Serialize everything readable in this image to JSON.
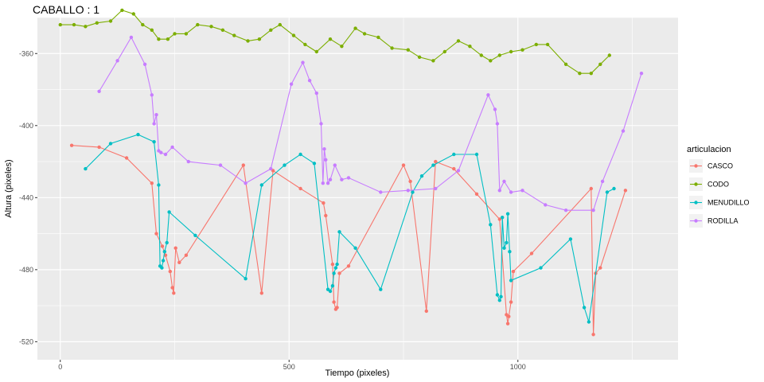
{
  "chart_data": {
    "type": "line",
    "title": "CABALLO :  1",
    "xlabel": "Tiempo (pixeles)",
    "ylabel": "Altura (pixeles)",
    "xlim": [
      -50,
      1350
    ],
    "ylim": [
      -530,
      -340
    ],
    "x_ticks": [
      0,
      500,
      1000
    ],
    "x_tick_labels": [
      "0",
      "500",
      "1000"
    ],
    "y_ticks": [
      -360,
      -400,
      -440,
      -480,
      -520
    ],
    "y_tick_labels": [
      "-360",
      "-400",
      "-440",
      "-480",
      "-520"
    ],
    "grid": true,
    "legend_title": "articulacion",
    "legend_position": "right",
    "series": [
      {
        "name": "CASCO",
        "color": "#F8766D",
        "x": [
          25,
          85,
          145,
          200,
          210,
          223,
          230,
          240,
          245,
          248,
          252,
          260,
          275,
          400,
          440,
          465,
          525,
          575,
          580,
          595,
          598,
          602,
          605,
          610,
          630,
          750,
          765,
          800,
          820,
          860,
          910,
          960,
          975,
          978,
          980,
          985,
          990,
          1030,
          1160,
          1165,
          1170,
          1180,
          1235
        ],
        "y": [
          -411,
          -412,
          -418,
          -432,
          -460,
          -467,
          -472,
          -481,
          -490,
          -493,
          -468,
          -476,
          -472,
          -422,
          -493,
          -425,
          -435,
          -443,
          -450,
          -477,
          -498,
          -502,
          -501,
          -482,
          -478,
          -422,
          -431,
          -503,
          -420,
          -424,
          -438,
          -452,
          -505,
          -510,
          -506,
          -498,
          -481,
          -471,
          -435,
          -516,
          -482,
          -479,
          -436
        ]
      },
      {
        "name": "CODO",
        "color": "#7CAE00",
        "x": [
          0,
          30,
          55,
          80,
          110,
          135,
          160,
          180,
          200,
          215,
          235,
          250,
          275,
          300,
          330,
          355,
          380,
          410,
          435,
          460,
          480,
          510,
          535,
          560,
          590,
          615,
          645,
          665,
          695,
          725,
          760,
          785,
          815,
          840,
          870,
          895,
          920,
          940,
          960,
          985,
          1010,
          1040,
          1065,
          1105,
          1135,
          1160,
          1180,
          1200
        ],
        "y": [
          -344,
          -344,
          -345,
          -343,
          -342,
          -336,
          -338,
          -344,
          -347,
          -352,
          -352,
          -349,
          -349,
          -344,
          -345,
          -347,
          -350,
          -353,
          -352,
          -347,
          -344,
          -350,
          -355,
          -359,
          -352,
          -356,
          -346,
          -349,
          -351,
          -357,
          -358,
          -362,
          -364,
          -359,
          -353,
          -356,
          -361,
          -364,
          -361,
          -359,
          -358,
          -355,
          -355,
          -366,
          -371,
          -371,
          -366,
          -361
        ]
      },
      {
        "name": "MENUDILLO",
        "color": "#00BFC4",
        "x": [
          55,
          110,
          170,
          205,
          215,
          218,
          222,
          225,
          228,
          233,
          238,
          295,
          405,
          440,
          490,
          525,
          555,
          585,
          590,
          595,
          598,
          602,
          605,
          610,
          645,
          700,
          770,
          790,
          815,
          860,
          910,
          940,
          955,
          960,
          963,
          966,
          970,
          975,
          978,
          982,
          985,
          1050,
          1115,
          1145,
          1155,
          1195,
          1210
        ],
        "y": [
          -424,
          -410,
          -405,
          -409,
          -433,
          -478,
          -479,
          -475,
          -470,
          -465,
          -448,
          -461,
          -485,
          -433,
          -422,
          -416,
          -421,
          -491,
          -492,
          -489,
          -482,
          -479,
          -477,
          -459,
          -468,
          -491,
          -437,
          -428,
          -422,
          -416,
          -416,
          -455,
          -494,
          -497,
          -495,
          -451,
          -468,
          -465,
          -449,
          -470,
          -486,
          -479,
          -463,
          -501,
          -509,
          -437,
          -435
        ]
      },
      {
        "name": "RODILLA",
        "color": "#C77CFF",
        "x": [
          85,
          125,
          155,
          185,
          200,
          205,
          210,
          215,
          220,
          230,
          245,
          280,
          350,
          405,
          460,
          505,
          530,
          545,
          560,
          570,
          574,
          577,
          580,
          585,
          590,
          600,
          615,
          630,
          700,
          760,
          820,
          870,
          935,
          950,
          955,
          960,
          970,
          985,
          1010,
          1060,
          1105,
          1165,
          1185,
          1230,
          1270
        ],
        "y": [
          -381,
          -364,
          -351,
          -366,
          -383,
          -399,
          -394,
          -414,
          -415,
          -416,
          -412,
          -420,
          -422,
          -432,
          -424,
          -377,
          -365,
          -375,
          -382,
          -399,
          -432,
          -413,
          -419,
          -432,
          -430,
          -422,
          -430,
          -429,
          -437,
          -436,
          -435,
          -425,
          -383,
          -391,
          -399,
          -436,
          -431,
          -437,
          -436,
          -444,
          -447,
          -447,
          -431,
          -403,
          -371
        ]
      }
    ]
  }
}
